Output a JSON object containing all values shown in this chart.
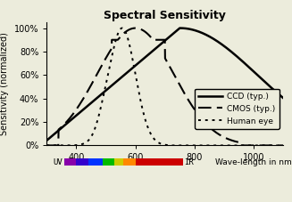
{
  "title": "Spectral Sensitivity",
  "ylabel": "Sensitivity (normalized)",
  "xlim": [
    300,
    1100
  ],
  "ylim": [
    0,
    1.05
  ],
  "yticks": [
    0.0,
    0.2,
    0.4,
    0.6,
    0.8,
    1.0
  ],
  "ytick_labels": [
    "0%",
    "20%",
    "40%",
    "60%",
    "80%",
    "100%"
  ],
  "xticks": [
    400,
    600,
    800,
    1000
  ],
  "background_color": "#ececdc",
  "spec_segments": [
    [
      360,
      400,
      "#8800aa"
    ],
    [
      400,
      440,
      "#3300cc"
    ],
    [
      440,
      490,
      "#0033ff"
    ],
    [
      490,
      530,
      "#00bb00"
    ],
    [
      530,
      560,
      "#cccc00"
    ],
    [
      560,
      600,
      "#ff8800"
    ],
    [
      600,
      760,
      "#cc0000"
    ]
  ],
  "line_color": "#000000",
  "title_fontsize": 9,
  "label_fontsize": 7,
  "tick_fontsize": 7
}
